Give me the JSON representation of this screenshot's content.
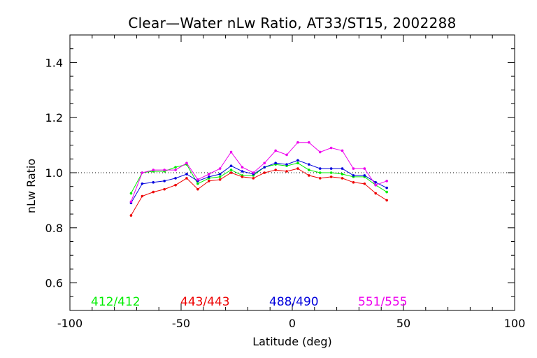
{
  "chart_data": {
    "type": "line",
    "title": "Clear—Water nLw Ratio, AT33/ST15, 2002288",
    "xlabel": "Latitude (deg)",
    "ylabel": "nLw Ratio",
    "xlim": [
      -100,
      100
    ],
    "ylim": [
      0.5,
      1.5
    ],
    "xticks": [
      -100,
      -50,
      0,
      50,
      100
    ],
    "yticks": [
      0.6,
      0.8,
      1.0,
      1.2,
      1.4
    ],
    "ytick_labels": [
      "0.6",
      "0.8",
      "1.0",
      "1.2",
      "1.4"
    ],
    "reference_line": {
      "y": 1.0,
      "style": "dotted"
    },
    "x": [
      -72.5,
      -67.5,
      -62.5,
      -57.5,
      -52.5,
      -47.5,
      -42.5,
      -37.5,
      -32.5,
      -27.5,
      -22.5,
      -17.5,
      -12.5,
      -7.5,
      -2.5,
      2.5,
      7.5,
      12.5,
      17.5,
      22.5,
      27.5,
      32.5,
      37.5,
      42.5
    ],
    "series": [
      {
        "name": "412/412",
        "color": "#00ee00",
        "x": [
          -72.5,
          -67.5,
          -62.5,
          -57.5,
          -52.5,
          -47.5,
          -42.5,
          -37.5,
          -32.5,
          -27.5,
          -22.5,
          -17.5,
          -12.5,
          -7.5,
          -2.5,
          2.5,
          7.5,
          12.5,
          17.5,
          22.5,
          27.5,
          32.5,
          37.5,
          42.5
        ],
        "values": [
          0.925,
          1.0,
          1.005,
          1.005,
          1.02,
          1.03,
          0.96,
          0.98,
          0.985,
          1.01,
          0.99,
          0.99,
          1.02,
          1.03,
          1.025,
          1.035,
          1.01,
          1.0,
          1.0,
          0.995,
          0.985,
          0.985,
          0.955,
          0.93
        ]
      },
      {
        "name": "443/443",
        "color": "#ee0000",
        "x": [
          -72.5,
          -67.5,
          -62.5,
          -57.5,
          -52.5,
          -47.5,
          -42.5,
          -37.5,
          -32.5,
          -27.5,
          -22.5,
          -17.5,
          -12.5,
          -7.5,
          -2.5,
          2.5,
          7.5,
          12.5,
          17.5,
          22.5,
          27.5,
          32.5,
          37.5,
          42.5
        ],
        "values": [
          0.845,
          0.915,
          0.93,
          0.94,
          0.955,
          0.98,
          0.94,
          0.97,
          0.975,
          1.0,
          0.985,
          0.98,
          1.0,
          1.01,
          1.005,
          1.015,
          0.99,
          0.98,
          0.985,
          0.98,
          0.965,
          0.96,
          0.925,
          0.9
        ]
      },
      {
        "name": "488/490",
        "color": "#0000dd",
        "x": [
          -72.5,
          -67.5,
          -62.5,
          -57.5,
          -52.5,
          -47.5,
          -42.5,
          -37.5,
          -32.5,
          -27.5,
          -22.5,
          -17.5,
          -12.5,
          -7.5,
          -2.5,
          2.5,
          7.5,
          12.5,
          17.5,
          22.5,
          27.5,
          32.5,
          37.5,
          42.5
        ],
        "values": [
          0.89,
          0.96,
          0.965,
          0.97,
          0.98,
          0.995,
          0.97,
          0.985,
          0.995,
          1.025,
          1.005,
          0.995,
          1.02,
          1.035,
          1.03,
          1.045,
          1.03,
          1.015,
          1.015,
          1.015,
          0.99,
          0.99,
          0.965,
          0.945
        ]
      },
      {
        "name": "551/555",
        "color": "#ee00ee",
        "x": [
          -72.5,
          -67.5,
          -62.5,
          -57.5,
          -52.5,
          -47.5,
          -42.5,
          -37.5,
          -32.5,
          -27.5,
          -22.5,
          -17.5,
          -12.5,
          -7.5,
          -2.5,
          2.5,
          7.5,
          12.5,
          17.5,
          22.5,
          27.5,
          32.5,
          37.5,
          42.5
        ],
        "values": [
          0.895,
          1.0,
          1.01,
          1.01,
          1.01,
          1.035,
          0.975,
          0.995,
          1.015,
          1.075,
          1.02,
          1.0,
          1.035,
          1.08,
          1.065,
          1.11,
          1.11,
          1.075,
          1.09,
          1.08,
          1.015,
          1.015,
          0.955,
          0.97
        ]
      }
    ],
    "legend_placement": "bottom-inside",
    "grid": false
  }
}
